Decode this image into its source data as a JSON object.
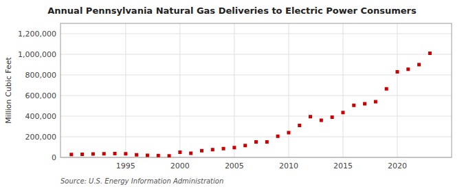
{
  "chart_data": {
    "type": "scatter",
    "title": "Annual Pennsylvania Natural Gas Deliveries to Electric Power Consumers",
    "y_label": "Million Cubic Feet",
    "source": "Source: U.S. Energy Information Administration",
    "x": [
      1990,
      1991,
      1992,
      1993,
      1994,
      1995,
      1996,
      1997,
      1998,
      1999,
      2000,
      2001,
      2002,
      2003,
      2004,
      2005,
      2006,
      2007,
      2008,
      2009,
      2010,
      2011,
      2012,
      2013,
      2014,
      2015,
      2016,
      2017,
      2018,
      2019,
      2020,
      2021,
      2022,
      2023
    ],
    "values": [
      28000,
      30000,
      33000,
      35000,
      37000,
      35000,
      25000,
      20000,
      18000,
      15000,
      50000,
      40000,
      65000,
      75000,
      85000,
      95000,
      115000,
      150000,
      150000,
      205000,
      240000,
      310000,
      395000,
      360000,
      390000,
      435000,
      505000,
      520000,
      540000,
      665000,
      830000,
      855000,
      900000,
      1010000
    ],
    "color": "#cc0000",
    "marker": "square",
    "xlim": [
      1989,
      2025
    ],
    "ylim": [
      0,
      1300000
    ],
    "xticks": [
      1995,
      2000,
      2005,
      2010,
      2015,
      2020
    ],
    "yticks": [
      0,
      {
        "value": 200000,
        "label": "200,000"
      },
      {
        "value": 400000,
        "label": "400,000"
      },
      {
        "value": 600000,
        "label": "600,000"
      },
      {
        "value": 800000,
        "label": "800,000"
      },
      {
        "value": 1000000,
        "label": "1,000,000"
      },
      {
        "value": 1200000,
        "label": "1,200,000"
      }
    ],
    "grid": true
  }
}
